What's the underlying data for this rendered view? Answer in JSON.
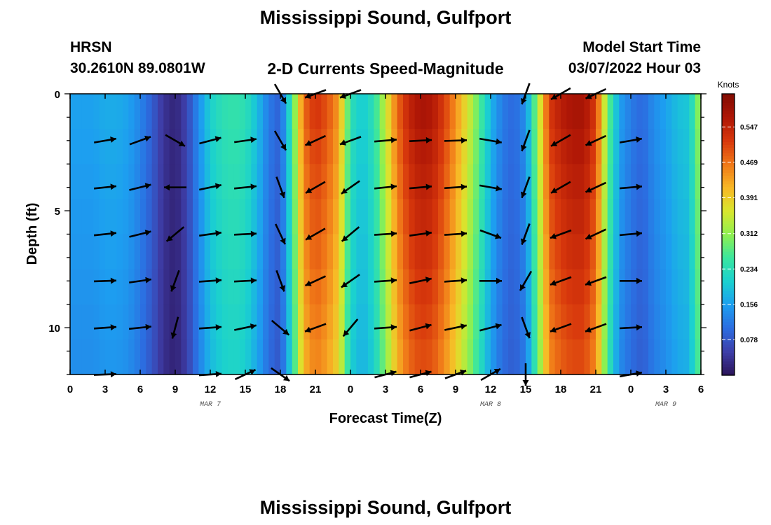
{
  "header": {
    "title": "Mississippi Sound, Gulfport",
    "station_code": "HRSN",
    "station_coords": "30.2610N  89.0801W",
    "plot_title": "2-D Currents Speed-Magnitude",
    "model_start_label": "Model Start Time",
    "model_start_value": "03/07/2022 Hour 03"
  },
  "footer": {
    "title": "Mississippi Sound, Gulfport"
  },
  "colors": {
    "arrow": "#000000",
    "colormap": [
      "#2b1358",
      "#3e3ea8",
      "#2c6ce0",
      "#1d9ef0",
      "#1ad0d0",
      "#3ae6a0",
      "#8ef050",
      "#d8e62e",
      "#f8b826",
      "#f07818",
      "#d8380c",
      "#ae1606",
      "#820c02"
    ]
  },
  "chart_data": {
    "type": "heatmap",
    "title": "2-D Currents Speed-Magnitude",
    "xlabel": "Forecast Time(Z)",
    "ylabel": "Depth (ft)",
    "x_range_hours": [
      0,
      54
    ],
    "y_range_ft": [
      0,
      12
    ],
    "x_ticks": [
      {
        "h": 0,
        "label": "0"
      },
      {
        "h": 3,
        "label": "3"
      },
      {
        "h": 6,
        "label": "6"
      },
      {
        "h": 9,
        "label": "9"
      },
      {
        "h": 12,
        "label": "12"
      },
      {
        "h": 15,
        "label": "15"
      },
      {
        "h": 18,
        "label": "18"
      },
      {
        "h": 21,
        "label": "21"
      },
      {
        "h": 24,
        "label": "0"
      },
      {
        "h": 27,
        "label": "3"
      },
      {
        "h": 30,
        "label": "6"
      },
      {
        "h": 33,
        "label": "9"
      },
      {
        "h": 36,
        "label": "12"
      },
      {
        "h": 39,
        "label": "15"
      },
      {
        "h": 42,
        "label": "18"
      },
      {
        "h": 45,
        "label": "21"
      },
      {
        "h": 48,
        "label": "0"
      },
      {
        "h": 51,
        "label": "3"
      },
      {
        "h": 54,
        "label": "6"
      }
    ],
    "y_ticks": [
      {
        "d": 0,
        "label": "0"
      },
      {
        "d": 5,
        "label": "5"
      },
      {
        "d": 10,
        "label": "10"
      }
    ],
    "date_labels": [
      {
        "h": 12,
        "label": "MAR 7"
      },
      {
        "h": 36,
        "label": "MAR 8"
      },
      {
        "h": 51,
        "label": "MAR 9"
      }
    ],
    "colorbar": {
      "label": "Knots",
      "min": 0.0,
      "max": 0.62,
      "ticks": [
        0.078,
        0.156,
        0.234,
        0.312,
        0.391,
        0.469,
        0.547
      ]
    },
    "speed_hourly": [
      0.16,
      0.16,
      0.16,
      0.17,
      0.17,
      0.16,
      0.13,
      0.09,
      0.04,
      0.02,
      0.06,
      0.14,
      0.21,
      0.24,
      0.25,
      0.24,
      0.19,
      0.12,
      0.09,
      0.26,
      0.48,
      0.53,
      0.5,
      0.44,
      0.24,
      0.2,
      0.24,
      0.35,
      0.48,
      0.55,
      0.58,
      0.57,
      0.52,
      0.45,
      0.37,
      0.28,
      0.18,
      0.12,
      0.1,
      0.14,
      0.32,
      0.52,
      0.56,
      0.58,
      0.58,
      0.52,
      0.3,
      0.16,
      0.12,
      0.1,
      0.14,
      0.16,
      0.19,
      0.2,
      0.34
    ],
    "arrow_depths_ft": [
      0,
      2,
      4,
      6,
      8,
      10,
      12
    ],
    "arrows": [
      {
        "t": 3,
        "deg": [
          null,
          10,
          6,
          6,
          2,
          4,
          2
        ]
      },
      {
        "t": 6,
        "deg": [
          null,
          20,
          14,
          14,
          8,
          6,
          null
        ]
      },
      {
        "t": 9,
        "deg": [
          null,
          330,
          180,
          220,
          250,
          255,
          null
        ]
      },
      {
        "t": 12,
        "deg": [
          null,
          15,
          12,
          8,
          4,
          4,
          4
        ]
      },
      {
        "t": 15,
        "deg": [
          null,
          8,
          6,
          3,
          3,
          12,
          25
        ]
      },
      {
        "t": 18,
        "deg": [
          300,
          300,
          290,
          295,
          290,
          320,
          325
        ]
      },
      {
        "t": 21,
        "deg": [
          200,
          205,
          210,
          210,
          205,
          200,
          null
        ]
      },
      {
        "t": 24,
        "deg": [
          200,
          200,
          215,
          220,
          215,
          230,
          null
        ]
      },
      {
        "t": 27,
        "deg": [
          null,
          5,
          6,
          4,
          4,
          4,
          15
        ]
      },
      {
        "t": 30,
        "deg": [
          null,
          3,
          5,
          8,
          12,
          15,
          15
        ]
      },
      {
        "t": 33,
        "deg": [
          null,
          2,
          4,
          4,
          4,
          12,
          20
        ]
      },
      {
        "t": 36,
        "deg": [
          null,
          350,
          350,
          340,
          360,
          15,
          30
        ]
      },
      {
        "t": 39,
        "deg": [
          250,
          250,
          250,
          250,
          240,
          290,
          270
        ]
      },
      {
        "t": 42,
        "deg": [
          210,
          210,
          210,
          200,
          200,
          200,
          null
        ]
      },
      {
        "t": 45,
        "deg": [
          205,
          205,
          205,
          205,
          200,
          200,
          null
        ]
      },
      {
        "t": 48,
        "deg": [
          null,
          10,
          5,
          5,
          0,
          3,
          10
        ]
      }
    ]
  }
}
